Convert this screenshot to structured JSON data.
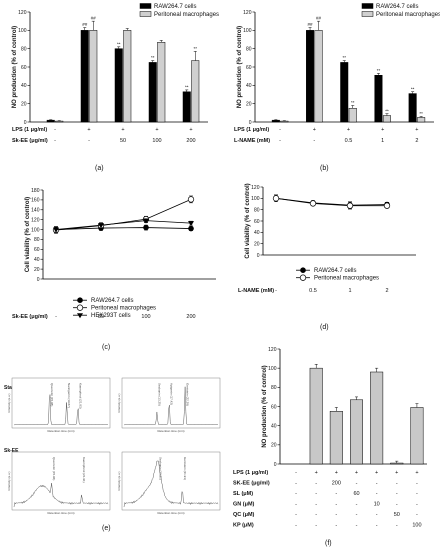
{
  "chart_data": [
    {
      "panel": "(a)",
      "type": "bar",
      "ylabel": "NO production (% of control)",
      "ylim": [
        0,
        120
      ],
      "yticks": [
        0,
        20,
        40,
        60,
        80,
        100,
        120
      ],
      "conditions": [
        {
          "label": "LPS (1 μg/ml)",
          "values": [
            "-",
            "+",
            "+",
            "+",
            "+"
          ]
        },
        {
          "label": "Sk-EE (μg/ml)",
          "values": [
            "-",
            "-",
            "50",
            "100",
            "200"
          ]
        }
      ],
      "series": [
        {
          "name": "RAW264.7 cells",
          "color": "#000000",
          "values": [
            2,
            100,
            80,
            65,
            33
          ],
          "errors": [
            0.5,
            3,
            2,
            2,
            2
          ],
          "annotations": [
            "",
            "##",
            "**",
            "**",
            "**"
          ]
        },
        {
          "name": "Peritoneal macrophages",
          "color": "#d0d0d0",
          "values": [
            1,
            100,
            100,
            87,
            67
          ],
          "errors": [
            0.5,
            10,
            2,
            2,
            10
          ],
          "annotations": [
            "",
            "##",
            "",
            "",
            "**"
          ]
        }
      ]
    },
    {
      "panel": "(b)",
      "type": "bar",
      "ylabel": "NO production (% of control)",
      "ylim": [
        0,
        120
      ],
      "yticks": [
        0,
        20,
        40,
        60,
        80,
        100,
        120
      ],
      "conditions": [
        {
          "label": "LPS (1 μg/ml)",
          "values": [
            "-",
            "+",
            "+",
            "+",
            "+"
          ]
        },
        {
          "label": "L-NAME (mM)",
          "values": [
            "-",
            "-",
            "0.5",
            "1",
            "2"
          ]
        }
      ],
      "series": [
        {
          "name": "RAW264.7 cells",
          "color": "#000000",
          "values": [
            2,
            100,
            65,
            51,
            31
          ],
          "errors": [
            0.5,
            3,
            2,
            2,
            2
          ],
          "annotations": [
            "",
            "##",
            "**",
            "**",
            "**"
          ]
        },
        {
          "name": "Peritoneal macrophages",
          "color": "#d0d0d0",
          "values": [
            1,
            100,
            15,
            7,
            5
          ],
          "errors": [
            0.5,
            10,
            3,
            2,
            1
          ],
          "annotations": [
            "",
            "##",
            "**",
            "**",
            "**"
          ]
        }
      ]
    },
    {
      "panel": "(c)",
      "type": "line",
      "ylabel": "Cell viability (% of control)",
      "ylim": [
        0,
        180
      ],
      "yticks": [
        0,
        20,
        40,
        60,
        80,
        100,
        120,
        140,
        160,
        180
      ],
      "xlabel": "Sk-EE (μg/ml)",
      "categories": [
        "-",
        "50",
        "100",
        "200"
      ],
      "series": [
        {
          "name": "RAW264.7 cells",
          "marker": "filled-circle",
          "values": [
            100,
            103,
            104,
            102
          ],
          "errors": [
            6,
            5,
            5,
            4
          ]
        },
        {
          "name": "Peritoneal macrophages",
          "marker": "open-circle",
          "values": [
            99,
            108,
            121,
            161
          ],
          "errors": [
            7,
            5,
            6,
            7
          ]
        },
        {
          "name": "HEK293T cells",
          "marker": "filled-triangle",
          "values": [
            100,
            109,
            118,
            113
          ],
          "errors": [
            5,
            5,
            4,
            4
          ]
        }
      ]
    },
    {
      "panel": "(d)",
      "type": "line",
      "ylabel": "Cell viability (% of control)",
      "ylim": [
        0,
        120
      ],
      "yticks": [
        0,
        20,
        40,
        60,
        80,
        100,
        120
      ],
      "xlabel": "L-NAME (mM)",
      "categories": [
        "-",
        "0.5",
        "1",
        "2"
      ],
      "series": [
        {
          "name": "RAW264.7 cells",
          "marker": "filled-circle",
          "values": [
            100,
            92,
            88,
            89
          ],
          "errors": [
            6,
            4,
            6,
            4
          ]
        },
        {
          "name": "Peritoneal macrophages",
          "marker": "open-circle",
          "values": [
            100,
            91,
            87,
            87
          ],
          "errors": [
            6,
            4,
            6,
            4
          ]
        }
      ]
    },
    {
      "panel": "(f)",
      "type": "bar",
      "ylabel": "NO production (% of control)",
      "ylim": [
        0,
        120
      ],
      "yticks": [
        0,
        20,
        40,
        60,
        80,
        100,
        120
      ],
      "conditions": [
        {
          "label": "LPS (1 μg/ml)",
          "values": [
            "-",
            "+",
            "+",
            "+",
            "+",
            "+",
            "+"
          ]
        },
        {
          "label": "SK-EE (μg/ml)",
          "values": [
            "-",
            "-",
            "200",
            "-",
            "-",
            "-",
            "-"
          ]
        },
        {
          "label": "SL (μM)",
          "values": [
            "-",
            "-",
            "-",
            "60",
            "-",
            "-",
            "-"
          ]
        },
        {
          "label": "GN (μM)",
          "values": [
            "-",
            "-",
            "-",
            "-",
            "10",
            "-",
            "-"
          ]
        },
        {
          "label": "QC (μM)",
          "values": [
            "-",
            "-",
            "-",
            "-",
            "-",
            "50",
            "-"
          ]
        },
        {
          "label": "KP (μM)",
          "values": [
            "-",
            "-",
            "-",
            "-",
            "-",
            "-",
            "100"
          ]
        }
      ],
      "series": [
        {
          "name": "",
          "color": "#c8c8c8",
          "values": [
            0,
            100,
            55,
            67,
            96,
            1,
            59
          ],
          "errors": [
            0,
            4,
            4,
            3,
            4,
            2,
            4
          ]
        }
      ]
    }
  ],
  "panel_e": {
    "label": "(e)",
    "rows": [
      {
        "label": "Standard",
        "plots": [
          {
            "peaks": [
              "Quercetin (15.98)",
              "Naringenin (19.87)",
              "Kaempferol (21.83)"
            ]
          },
          {
            "peaks": [
              "Sesbanin (13.25)",
              "Apigenin (17.42)",
              "Genistein (22.28)"
            ]
          }
        ]
      },
      {
        "label": "Sk-EE",
        "plots": [
          {
            "peaks": [
              "Quercetin (15.96)",
              "Kaempferol (21.91)"
            ]
          },
          {
            "peaks": [
              "Sesbanin (13.21)",
              "Genistein (21.91)"
            ]
          }
        ]
      }
    ],
    "axis_caption": "Retention time (min)",
    "yaxis_caption": "Intensity (a.u.)"
  }
}
